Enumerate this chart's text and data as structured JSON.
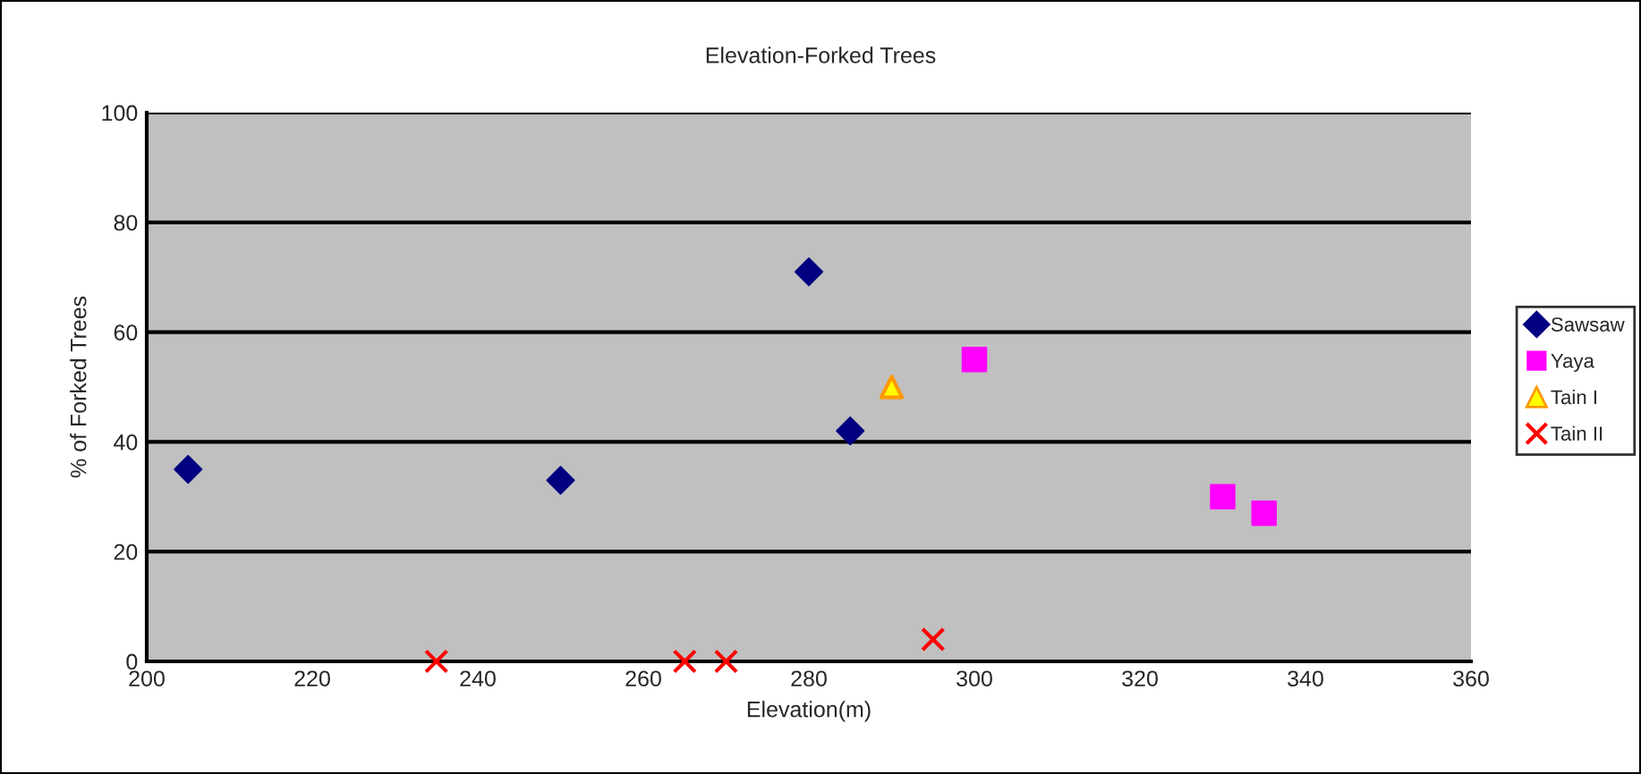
{
  "chart_data": {
    "type": "scatter",
    "title": "Elevation-Forked Trees",
    "xlabel": "Elevation(m)",
    "ylabel": "% of Forked Trees",
    "xlim": [
      200,
      360
    ],
    "xticks": [
      200,
      220,
      240,
      260,
      280,
      300,
      320,
      340,
      360
    ],
    "ylim": [
      0,
      100
    ],
    "yticks": [
      0,
      20,
      40,
      60,
      80,
      100
    ],
    "grid": "y",
    "legend": "right",
    "series": [
      {
        "name": "Sawsaw",
        "color": "#000080",
        "marker": "diamond",
        "x": [
          205,
          250,
          280,
          285
        ],
        "values": [
          35,
          33,
          71,
          42
        ]
      },
      {
        "name": "Yaya",
        "color": "#ff00ff",
        "marker": "square",
        "x": [
          300,
          330,
          335
        ],
        "values": [
          55,
          30,
          27
        ]
      },
      {
        "name": "Tain I",
        "color": "#ffff00",
        "marker": "triangle",
        "x": [
          290
        ],
        "values": [
          50
        ]
      },
      {
        "name": "Tain II",
        "color": "#ff0000",
        "marker": "cross",
        "x": [
          235,
          265,
          270,
          295
        ],
        "values": [
          0,
          0,
          0,
          4
        ]
      }
    ]
  }
}
